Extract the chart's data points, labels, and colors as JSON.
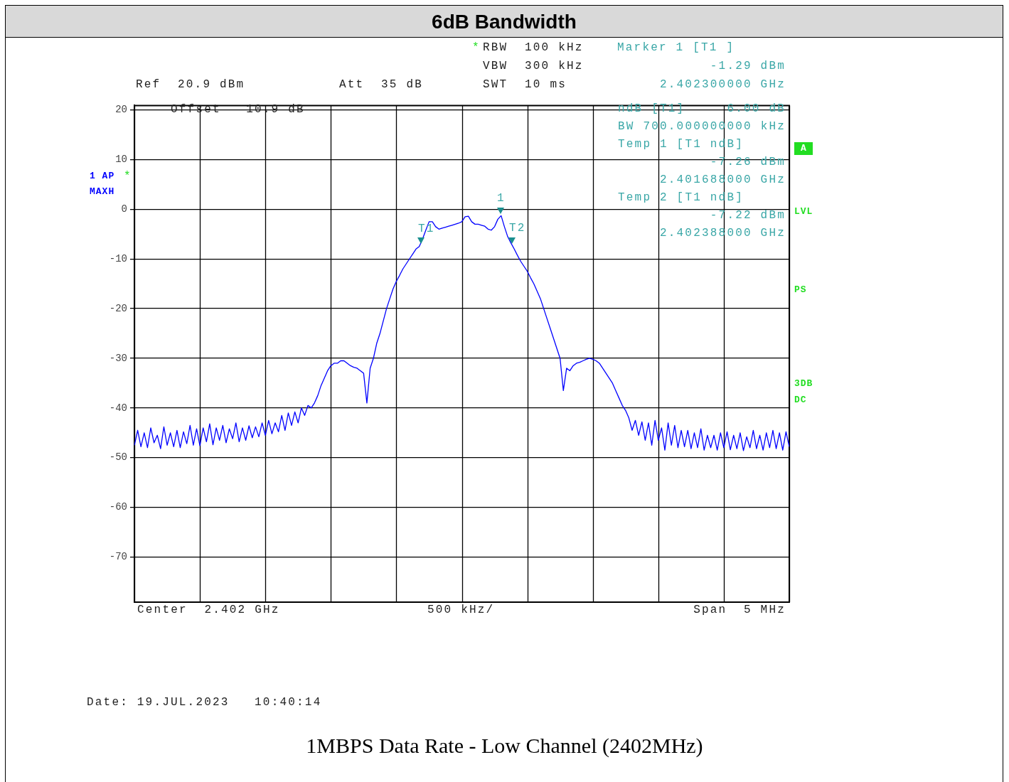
{
  "chart_data": {
    "type": "line",
    "title": "6dB Bandwidth",
    "categories": [
      null,
      null,
      null,
      null,
      null,
      null,
      null,
      null,
      null,
      null,
      null,
      null,
      null,
      null,
      null,
      null,
      null,
      null,
      null,
      null,
      null,
      null,
      null,
      null,
      null,
      null,
      null,
      null,
      null,
      null,
      null,
      null,
      null,
      null,
      null,
      null,
      null,
      null,
      null,
      null,
      null,
      null,
      null,
      null,
      null,
      null,
      null,
      null,
      null,
      null,
      null,
      null,
      null,
      null,
      null,
      null,
      null,
      null,
      null,
      null,
      null,
      null,
      null,
      null,
      null,
      null,
      null,
      null,
      null,
      null,
      null,
      null,
      null,
      null,
      null,
      null,
      null,
      null,
      null,
      null,
      null,
      null,
      null,
      null,
      null,
      null,
      null,
      null,
      null,
      null,
      null,
      null,
      null,
      null,
      null,
      null,
      null,
      null,
      null,
      null,
      null,
      null,
      null,
      null,
      null,
      null,
      null,
      null,
      null,
      null,
      null,
      null,
      null,
      null,
      null,
      null,
      null,
      null,
      null,
      null,
      null,
      null,
      null,
      null,
      null,
      null,
      null,
      null,
      null,
      null,
      null,
      null,
      null,
      null,
      null,
      null,
      null,
      null,
      null,
      null,
      null,
      null,
      null,
      null,
      null,
      null,
      null,
      null,
      null,
      null,
      null,
      null,
      null,
      null,
      null,
      null,
      null,
      null,
      null,
      null,
      null,
      null,
      null,
      null,
      null,
      null,
      null,
      null,
      null,
      null,
      null,
      null,
      null,
      null,
      null,
      null,
      null,
      null,
      null,
      null,
      null,
      null,
      null,
      null,
      null,
      null,
      null,
      null,
      null,
      null,
      null,
      null,
      null,
      null,
      null,
      null,
      null,
      null,
      null,
      null,
      null
    ],
    "ylim": [
      -79.1,
      20.9
    ],
    "yticks": [
      20,
      10,
      0,
      -10,
      -20,
      -30,
      -40,
      -50,
      -60,
      -70
    ],
    "grid": true,
    "tick_labels": "y",
    "series": [
      {
        "color": "#0000ff",
        "values": [
          -47.5,
          -44.5,
          -47.8,
          -45,
          -48,
          -44,
          -47,
          -45.5,
          -48.2,
          -43.8,
          -47.5,
          -45,
          -47.8,
          -44.5,
          -48,
          -44.8,
          -47.2,
          -43.5,
          -47.5,
          -44.2,
          -47.6,
          -44,
          -46.8,
          -43.2,
          -47.4,
          -44,
          -46.5,
          -43.5,
          -47,
          -44.2,
          -46.2,
          -43,
          -46.8,
          -44,
          -46.5,
          -43.6,
          -46,
          -43.8,
          -45.8,
          -43,
          -45.5,
          -42.5,
          -45.2,
          -43,
          -44.8,
          -41.5,
          -44.5,
          -41,
          -43.5,
          -40.8,
          -43,
          -40,
          -41.5,
          -39.5,
          -40,
          -39,
          -37.5,
          -35.5,
          -34,
          -32.5,
          -31.5,
          -31,
          -31,
          -30.5,
          -30.5,
          -31,
          -31.5,
          -31.8,
          -32,
          -32.5,
          -33,
          -39,
          -32,
          -30,
          -27,
          -25,
          -22.5,
          -20,
          -18,
          -16,
          -14.5,
          -13.3,
          -12,
          -11,
          -10,
          -9,
          -8,
          -7.5,
          -6,
          -4.2,
          -2.5,
          -2.5,
          -3.5,
          -4,
          -3.8,
          -3.6,
          -3.4,
          -3.2,
          -3,
          -2.8,
          -2.5,
          -1.5,
          -1.4,
          -2.5,
          -3,
          -3,
          -3.2,
          -3.4,
          -4,
          -4.2,
          -3.5,
          -2,
          -1.29,
          -3.5,
          -5.5,
          -6.8,
          -8,
          -9.3,
          -10.5,
          -11.5,
          -12.5,
          -13.8,
          -15,
          -16.5,
          -18,
          -20,
          -22,
          -24,
          -26,
          -28,
          -30,
          -36.5,
          -32,
          -32.5,
          -31.5,
          -31,
          -30.8,
          -30.5,
          -30.2,
          -30,
          -30.2,
          -30.5,
          -31,
          -32,
          -33,
          -34,
          -35,
          -36.5,
          -38,
          -39.5,
          -40.5,
          -42,
          -44.5,
          -42.5,
          -45.5,
          -42.8,
          -46.5,
          -43,
          -47.5,
          -42.5,
          -46.5,
          -44,
          -48.5,
          -43,
          -47.5,
          -43.5,
          -48,
          -44.5,
          -47.8,
          -44.5,
          -48.2,
          -45,
          -48,
          -44.2,
          -48.5,
          -45.5,
          -48,
          -45.5,
          -48.5,
          -45,
          -48,
          -44.8,
          -48.4,
          -45.5,
          -48.2,
          -45,
          -48.6,
          -45.8,
          -48,
          -44.5,
          -48.2,
          -45.5,
          -48.5,
          -45,
          -48,
          -44.5,
          -48.2,
          -45,
          -48.5,
          -44.8,
          -47.8
        ]
      }
    ],
    "annotations": [
      "Ref  20.9 dBm",
      "Att  35 dB",
      "*",
      "RBW  100 kHz",
      "VBW  300 kHz",
      "SWT  10 ms",
      "Marker 1 [T1 ]",
      "-1.29 dBm",
      "2.402300000 GHz",
      "Offset   10.9 dB",
      "ndB [T1]     6.00 dB",
      "BW 700.000000000 kHz",
      "Temp 1 [T1 ndB]",
      "-7.26 dBm",
      "2.401688000 GHz",
      "Temp 2 [T1 ndB]",
      "-7.22 dBm",
      "2.402388000 GHz",
      "1 AP",
      "*",
      "MAXH",
      "A",
      "LVL",
      "PS",
      "3DB",
      "DC",
      "Center  2.402 GHz",
      "500 kHz/",
      "Span  5 MHz",
      "Date: 19.JUL.2023   10:40:14",
      "1MBPS Data Rate - Low Channel (2402MHz)",
      "1",
      "T1",
      "T2"
    ]
  }
}
